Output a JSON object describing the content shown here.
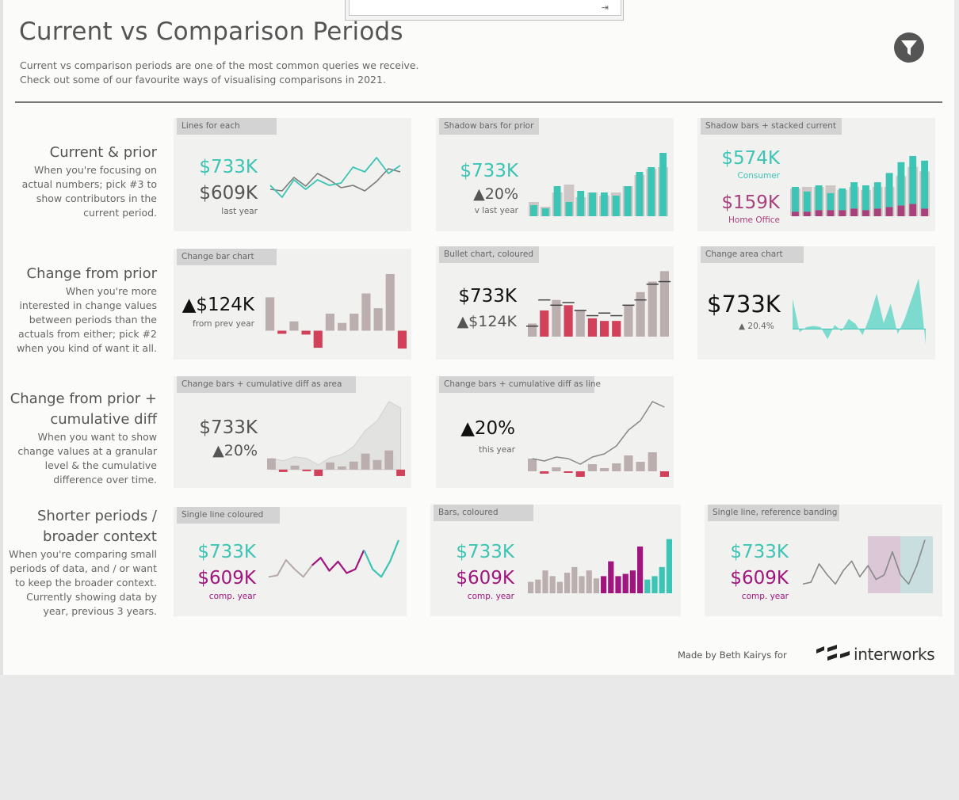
{
  "header": {
    "title": "Current vs Comparison Periods",
    "subtitle_line1": "Current vs comparison periods are one of the most common queries we receive.",
    "subtitle_line2": "Check out some of our favourite ways of visualising comparisons in 2021."
  },
  "icons": {
    "filter": "filter-funnel-icon",
    "pin": "pin-icon",
    "logo": "interworks-logo"
  },
  "colors": {
    "teal": "#3cc4b4",
    "grey_bar": "#bbaeae",
    "red": "#d2415a",
    "purple": "#a0157e",
    "magenta": "#a8407c",
    "shadow": "#cfc7c6"
  },
  "rows": [
    {
      "heading": "Current & prior",
      "desc": [
        "When you're focusing on",
        "actual numbers; pick #3 to",
        "show contributors in the",
        "current period."
      ]
    },
    {
      "heading": "Change from prior",
      "desc": [
        "When you're more",
        "interested in change values",
        "between periods than the",
        "actuals from either; pick #2",
        "when you kind of want it all."
      ]
    },
    {
      "heading": [
        "Change from prior +",
        "cumulative diff"
      ],
      "desc": [
        "When you want to show",
        "change values at a granular",
        "level & the cumulative",
        "difference over time."
      ]
    },
    {
      "heading": [
        "Shorter periods /",
        "broader context"
      ],
      "desc": [
        "When you're comparing small",
        "periods of data, and / or want",
        "to keep the broader context.",
        "Currently showing data by",
        "year, previous 3 years."
      ]
    }
  ],
  "panels": {
    "p1": {
      "tag": "Lines for each",
      "current": "$733K",
      "prior": "$609K",
      "note": "last year"
    },
    "p2": {
      "tag": "Shadow bars for prior",
      "current": "$733K",
      "change": "▲20%",
      "note": "v last year"
    },
    "p3": {
      "tag": "Shadow bars + stacked current",
      "v1": "$574K",
      "l1": "Consumer",
      "v2": "$159K",
      "l2": "Home Office"
    },
    "p4": {
      "tag": "Change bar chart",
      "value": "▲$124K",
      "note": "from prev year"
    },
    "p5": {
      "tag": "Bullet chart, coloured",
      "value": "$733K",
      "change": "▲$124K"
    },
    "p6": {
      "tag": "Change area chart",
      "value": "$733K",
      "change": "▲ 20.4%"
    },
    "p7": {
      "tag": "Change bars + cumulative diff as area",
      "value": "$733K",
      "change": "▲20%"
    },
    "p8": {
      "tag": "Change bars + cumulative diff as line",
      "value": "▲20%",
      "note": "this year"
    },
    "p9": {
      "tag": "Single line coloured",
      "current": "$733K",
      "prior": "$609K",
      "note": "comp. year"
    },
    "p10": {
      "tag": "Bars, coloured",
      "current": "$733K",
      "prior": "$609K",
      "note": "comp. year"
    },
    "p11": {
      "tag": "Single line, reference banding",
      "current": "$733K",
      "prior": "$609K",
      "note": "comp. year"
    }
  },
  "footer": {
    "credit": "Made by Beth Kairys for",
    "brand": "interworks"
  },
  "chart_data": [
    {
      "id": "p1",
      "type": "line",
      "x": [
        1,
        2,
        3,
        4,
        5,
        6,
        7,
        8,
        9,
        10,
        11,
        12
      ],
      "series": [
        {
          "values": [
            45,
            30,
            52,
            40,
            52,
            45,
            48,
            68,
            62,
            80,
            60,
            70
          ]
        },
        {
          "values": [
            40,
            38,
            55,
            44,
            60,
            52,
            42,
            45,
            38,
            50,
            66,
            62
          ]
        }
      ]
    },
    {
      "id": "p2",
      "type": "bar",
      "x": [
        1,
        2,
        3,
        4,
        5,
        6,
        7,
        8,
        9,
        10,
        11,
        12
      ],
      "series": [
        {
          "values": [
            14,
            10,
            38,
            18,
            32,
            30,
            30,
            26,
            38,
            56,
            62,
            80
          ]
        },
        {
          "values": [
            18,
            12,
            30,
            40,
            24,
            30,
            26,
            30,
            38,
            52,
            60,
            62
          ]
        }
      ]
    },
    {
      "id": "p3",
      "type": "bar",
      "x": [
        1,
        2,
        3,
        4,
        5,
        6,
        7,
        8,
        9,
        10,
        11,
        12
      ],
      "series": [
        {
          "values": [
            32,
            26,
            32,
            22,
            28,
            34,
            32,
            34,
            44,
            56,
            62,
            62
          ]
        },
        {
          "values": [
            6,
            6,
            8,
            8,
            8,
            10,
            8,
            10,
            12,
            14,
            16,
            10
          ]
        },
        {
          "values": [
            36,
            38,
            38,
            40,
            34,
            38,
            34,
            38,
            38,
            52,
            64,
            58
          ]
        }
      ]
    },
    {
      "id": "p4",
      "type": "bar",
      "x": [
        1,
        2,
        3,
        4,
        5,
        6,
        7,
        8,
        9,
        10,
        11,
        12
      ],
      "values": [
        43,
        -4,
        12,
        -5,
        -22,
        22,
        10,
        22,
        48,
        29,
        73,
        -23
      ]
    },
    {
      "id": "p5",
      "type": "bar",
      "x": [
        1,
        2,
        3,
        4,
        5,
        6,
        7,
        8,
        9,
        10,
        11,
        12
      ],
      "series": [
        {
          "values": [
            5,
            10,
            14,
            12,
            10,
            7,
            6,
            6,
            12,
            17,
            21,
            25
          ]
        },
        {
          "values": [
            4,
            14,
            12,
            13,
            10,
            8,
            9,
            8,
            12,
            14,
            20,
            21
          ]
        }
      ]
    },
    {
      "id": "p6",
      "type": "area",
      "x": [
        1,
        2,
        3,
        4,
        5,
        6,
        7,
        8,
        9,
        10,
        11,
        12,
        13,
        14,
        15,
        16,
        17,
        18,
        19,
        20
      ],
      "values": [
        30,
        -3,
        2,
        3,
        2,
        -10,
        4,
        -2,
        10,
        5,
        -6,
        12,
        35,
        6,
        25,
        -5,
        10,
        30,
        50,
        -15
      ]
    },
    {
      "id": "p7",
      "type": "bar",
      "x": [
        1,
        2,
        3,
        4,
        5,
        6,
        7,
        8,
        9,
        10,
        11,
        12
      ],
      "series": [
        {
          "values": [
            14,
            -3,
            5,
            -2,
            -8,
            9,
            4,
            10,
            20,
            12,
            24,
            -8
          ]
        },
        {
          "values": [
            14,
            11,
            16,
            14,
            6,
            15,
            19,
            29,
            49,
            61,
            85,
            77
          ]
        }
      ]
    },
    {
      "id": "p8",
      "type": "bar",
      "x": [
        1,
        2,
        3,
        4,
        5,
        6,
        7,
        8,
        9,
        10,
        11,
        12
      ],
      "series": [
        {
          "values": [
            16,
            -3,
            5,
            -2,
            -7,
            9,
            4,
            10,
            20,
            12,
            24,
            -7
          ]
        },
        {
          "values": [
            16,
            13,
            18,
            16,
            9,
            18,
            22,
            32,
            52,
            64,
            88,
            81
          ]
        }
      ]
    },
    {
      "id": "p9",
      "type": "line",
      "x": [
        1,
        2,
        3,
        4,
        5,
        6,
        7,
        8,
        9,
        10,
        11,
        12,
        13,
        14,
        15,
        16
      ],
      "values": [
        20,
        22,
        42,
        30,
        20,
        35,
        45,
        28,
        40,
        25,
        30,
        55,
        30,
        20,
        40,
        68
      ]
    },
    {
      "id": "p10",
      "type": "bar",
      "x": [
        1,
        2,
        3,
        4,
        5,
        6,
        7,
        8,
        9,
        10,
        11,
        12,
        13,
        14,
        15,
        16,
        17,
        18,
        19,
        20
      ],
      "values": [
        20,
        24,
        40,
        30,
        20,
        36,
        46,
        30,
        40,
        26,
        30,
        56,
        30,
        34,
        40,
        82,
        24,
        30,
        46,
        95
      ]
    },
    {
      "id": "p11",
      "type": "line",
      "x": [
        1,
        2,
        3,
        4,
        5,
        6,
        7,
        8,
        9,
        10,
        11,
        12,
        13,
        14,
        15,
        16
      ],
      "values": [
        20,
        22,
        42,
        30,
        20,
        35,
        45,
        28,
        40,
        25,
        30,
        55,
        30,
        20,
        40,
        68
      ]
    }
  ]
}
